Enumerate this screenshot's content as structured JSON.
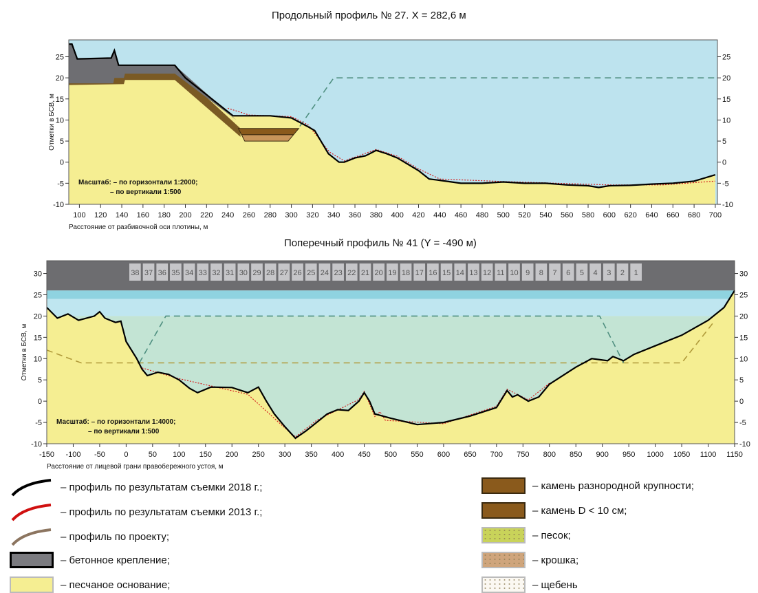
{
  "top_chart": {
    "title": "Продольный профиль № 27. X = 282,6 м",
    "ylabel": "Отметки в БСВ, м",
    "xlabel": "Расстояние от разбивочной оси плотины, м",
    "scale_line1": "Масштаб: – по горизонтали 1:2000;",
    "scale_line2": "– по вертикали 1:500",
    "xlim": [
      90,
      702
    ],
    "ylim": [
      -10,
      29
    ],
    "xticks": [
      100,
      120,
      140,
      160,
      180,
      200,
      220,
      240,
      260,
      280,
      300,
      320,
      340,
      360,
      380,
      400,
      420,
      440,
      460,
      480,
      500,
      520,
      540,
      560,
      580,
      600,
      620,
      640,
      660,
      680,
      700
    ],
    "yticks": [
      -10,
      -5,
      0,
      5,
      10,
      15,
      20,
      25
    ],
    "profile_2018": [
      [
        90,
        28
      ],
      [
        93,
        28
      ],
      [
        98,
        24.5
      ],
      [
        130,
        24.7
      ],
      [
        133,
        26.5
      ],
      [
        137,
        23
      ],
      [
        190,
        23
      ],
      [
        200,
        20
      ],
      [
        220,
        16
      ],
      [
        235,
        13
      ],
      [
        245,
        11
      ],
      [
        260,
        11
      ],
      [
        280,
        11
      ],
      [
        300,
        10.5
      ],
      [
        315,
        8.5
      ],
      [
        322,
        7.5
      ],
      [
        335,
        2
      ],
      [
        345,
        0
      ],
      [
        350,
        0
      ],
      [
        360,
        1
      ],
      [
        370,
        1.5
      ],
      [
        380,
        2.8
      ],
      [
        390,
        2
      ],
      [
        400,
        1
      ],
      [
        410,
        -0.5
      ],
      [
        420,
        -2
      ],
      [
        430,
        -4
      ],
      [
        440,
        -4.3
      ],
      [
        460,
        -5
      ],
      [
        480,
        -5
      ],
      [
        500,
        -4.7
      ],
      [
        520,
        -5
      ],
      [
        540,
        -5
      ],
      [
        560,
        -5.4
      ],
      [
        580,
        -5.6
      ],
      [
        590,
        -6
      ],
      [
        600,
        -5.6
      ],
      [
        620,
        -5.5
      ],
      [
        640,
        -5.2
      ],
      [
        660,
        -5
      ],
      [
        680,
        -4.5
      ],
      [
        700,
        -3
      ]
    ],
    "profile_2013": [
      [
        240,
        12.8
      ],
      [
        260,
        11.2
      ],
      [
        300,
        10.8
      ],
      [
        316,
        8.8
      ],
      [
        336,
        2.4
      ],
      [
        350,
        0.3
      ],
      [
        380,
        3
      ],
      [
        400,
        1.4
      ],
      [
        420,
        -1.6
      ],
      [
        440,
        -4
      ],
      [
        500,
        -4.6
      ],
      [
        600,
        -5.4
      ],
      [
        650,
        -5.4
      ],
      [
        700,
        -4.5
      ]
    ],
    "profile_design": [
      [
        308,
        8.5
      ],
      [
        340,
        20
      ],
      [
        702,
        20
      ]
    ],
    "concrete_base": [
      [
        90,
        18.3
      ],
      [
        132,
        18.3
      ],
      [
        133,
        19.5
      ],
      [
        142,
        19.5
      ],
      [
        143,
        20.5
      ],
      [
        190,
        20.5
      ],
      [
        252,
        5.5
      ]
    ],
    "stone_mixed": [
      [
        250,
        8
      ],
      [
        307,
        8
      ],
      [
        302,
        6.5
      ],
      [
        253,
        6.5
      ]
    ],
    "stone_small": [
      [
        253,
        6.5
      ],
      [
        302,
        6.5
      ],
      [
        297,
        5
      ],
      [
        256,
        5
      ]
    ],
    "colors": {
      "water": "#bde3ee",
      "sand_base": "#f5ee92",
      "concrete": "#6e6e72",
      "stone": "#8a5a1c",
      "crumb": "#c8955a",
      "design": "#4f8f80",
      "p2018": "#000000",
      "p2013": "#d42020"
    }
  },
  "bottom_chart": {
    "title": "Поперечный профиль № 41 (Y = -490 м)",
    "ylabel": "Отметки в БСВ, м",
    "xlabel": "Расстояние от лицевой грани правобережного устоя, м",
    "scale_line1": "Масштаб: – по горизонтали 1:4000;",
    "scale_line2": "– по вертикали 1:500",
    "xlim": [
      -150,
      1150
    ],
    "ylim": [
      -10,
      33
    ],
    "xticks": [
      -150,
      -100,
      -50,
      0,
      50,
      100,
      150,
      200,
      250,
      300,
      350,
      400,
      450,
      500,
      550,
      600,
      650,
      700,
      750,
      800,
      850,
      900,
      950,
      1000,
      1050,
      1100,
      1150
    ],
    "yticks": [
      -10,
      -5,
      0,
      5,
      10,
      15,
      20,
      25,
      30
    ],
    "piers": [
      "38",
      "37",
      "36",
      "35",
      "34",
      "33",
      "32",
      "31",
      "30",
      "29",
      "28",
      "27",
      "26",
      "25",
      "24",
      "23",
      "22",
      "21",
      "20",
      "19",
      "18",
      "17",
      "16",
      "15",
      "14",
      "13",
      "12",
      "11",
      "10",
      "9",
      "8",
      "7",
      "6",
      "5",
      "4",
      "3",
      "2",
      "1"
    ],
    "profile_2018": [
      [
        -150,
        22
      ],
      [
        -130,
        19.5
      ],
      [
        -110,
        20.5
      ],
      [
        -90,
        19
      ],
      [
        -60,
        20
      ],
      [
        -50,
        21
      ],
      [
        -40,
        19.5
      ],
      [
        -30,
        19
      ],
      [
        -20,
        18.5
      ],
      [
        -10,
        18.8
      ],
      [
        0,
        14
      ],
      [
        20,
        10
      ],
      [
        30,
        7.5
      ],
      [
        40,
        6
      ],
      [
        60,
        6.8
      ],
      [
        80,
        6.3
      ],
      [
        100,
        5
      ],
      [
        120,
        3
      ],
      [
        135,
        2
      ],
      [
        160,
        3.3
      ],
      [
        200,
        3.2
      ],
      [
        230,
        2
      ],
      [
        250,
        3.3
      ],
      [
        265,
        0
      ],
      [
        280,
        -3
      ],
      [
        300,
        -6
      ],
      [
        320,
        -8.7
      ],
      [
        340,
        -7
      ],
      [
        360,
        -5
      ],
      [
        380,
        -3
      ],
      [
        400,
        -2
      ],
      [
        420,
        -2.2
      ],
      [
        440,
        0
      ],
      [
        450,
        2
      ],
      [
        460,
        0
      ],
      [
        470,
        -3
      ],
      [
        500,
        -4
      ],
      [
        550,
        -5.5
      ],
      [
        600,
        -5
      ],
      [
        650,
        -3.5
      ],
      [
        700,
        -1.5
      ],
      [
        720,
        2.5
      ],
      [
        730,
        1
      ],
      [
        740,
        1.5
      ],
      [
        760,
        0
      ],
      [
        780,
        1
      ],
      [
        800,
        4
      ],
      [
        850,
        8
      ],
      [
        880,
        10
      ],
      [
        910,
        9.5
      ],
      [
        920,
        10.5
      ],
      [
        940,
        9.5
      ],
      [
        960,
        11
      ],
      [
        1000,
        13
      ],
      [
        1050,
        15.5
      ],
      [
        1100,
        19
      ],
      [
        1130,
        22
      ],
      [
        1150,
        26
      ]
    ],
    "profile_2013": [
      [
        30,
        7.8
      ],
      [
        100,
        5.3
      ],
      [
        230,
        1.6
      ],
      [
        300,
        -6.3
      ],
      [
        320,
        -8.4
      ],
      [
        360,
        -4.5
      ],
      [
        440,
        0.4
      ],
      [
        450,
        2.3
      ],
      [
        470,
        -3.6
      ],
      [
        480,
        -2.5
      ],
      [
        490,
        -4.5
      ],
      [
        600,
        -5.3
      ],
      [
        700,
        -1.2
      ],
      [
        720,
        2.8
      ],
      [
        760,
        0.3
      ],
      [
        800,
        4.2
      ]
    ],
    "design_channel": [
      [
        25,
        9
      ],
      [
        75,
        20
      ],
      [
        895,
        20
      ],
      [
        940,
        9
      ]
    ],
    "design_berm": [
      [
        -150,
        12
      ],
      [
        -85,
        9
      ],
      [
        25,
        9
      ],
      [
        940,
        9
      ],
      [
        1050,
        9
      ],
      [
        1110,
        18.5
      ]
    ],
    "colors": {
      "bridge": "#6d6d70",
      "pier_box": "#c6c6c9",
      "water_top": "#8fd3e0",
      "water": "#bfe6f0",
      "channel_water": "#c3e4d4",
      "sand_base": "#f5ee92",
      "design": "#4f8f80",
      "berm": "#b09a3a",
      "p2018": "#000000",
      "p2013": "#d42020"
    }
  },
  "legend": {
    "left": [
      {
        "label": "– профиль по результатам съемки 2018 г.;",
        "icon": "black-curve",
        "color": "#000000"
      },
      {
        "label": "– профиль по результатам съемки 2013 г.;",
        "icon": "red-curve",
        "color": "#d01010"
      },
      {
        "label": "– профиль по проекту;",
        "icon": "brown-curve",
        "color": "#8c7560"
      },
      {
        "label": "– бетонное крепление;",
        "icon": "gray-swatch",
        "color": "#7b7b80"
      },
      {
        "label": "– песчаное основание;",
        "icon": "yellow-swatch",
        "color": "#f5ee92"
      }
    ],
    "right": [
      {
        "label": "– камень разнородной крупности;",
        "icon": "brown-swatch",
        "color": "#8a5a1c"
      },
      {
        "label": "– камень D < 10 см;",
        "icon": "brown-swatch",
        "color": "#8a5a1c"
      },
      {
        "label": "– песок;",
        "icon": "green-dotted-swatch",
        "color": "#c9d35a"
      },
      {
        "label": "– крошка;",
        "icon": "tan-dotted-swatch",
        "color": "#cfa57c"
      },
      {
        "label": "– щебень",
        "icon": "white-dotted-swatch",
        "color": "#fbf8f2"
      }
    ]
  }
}
